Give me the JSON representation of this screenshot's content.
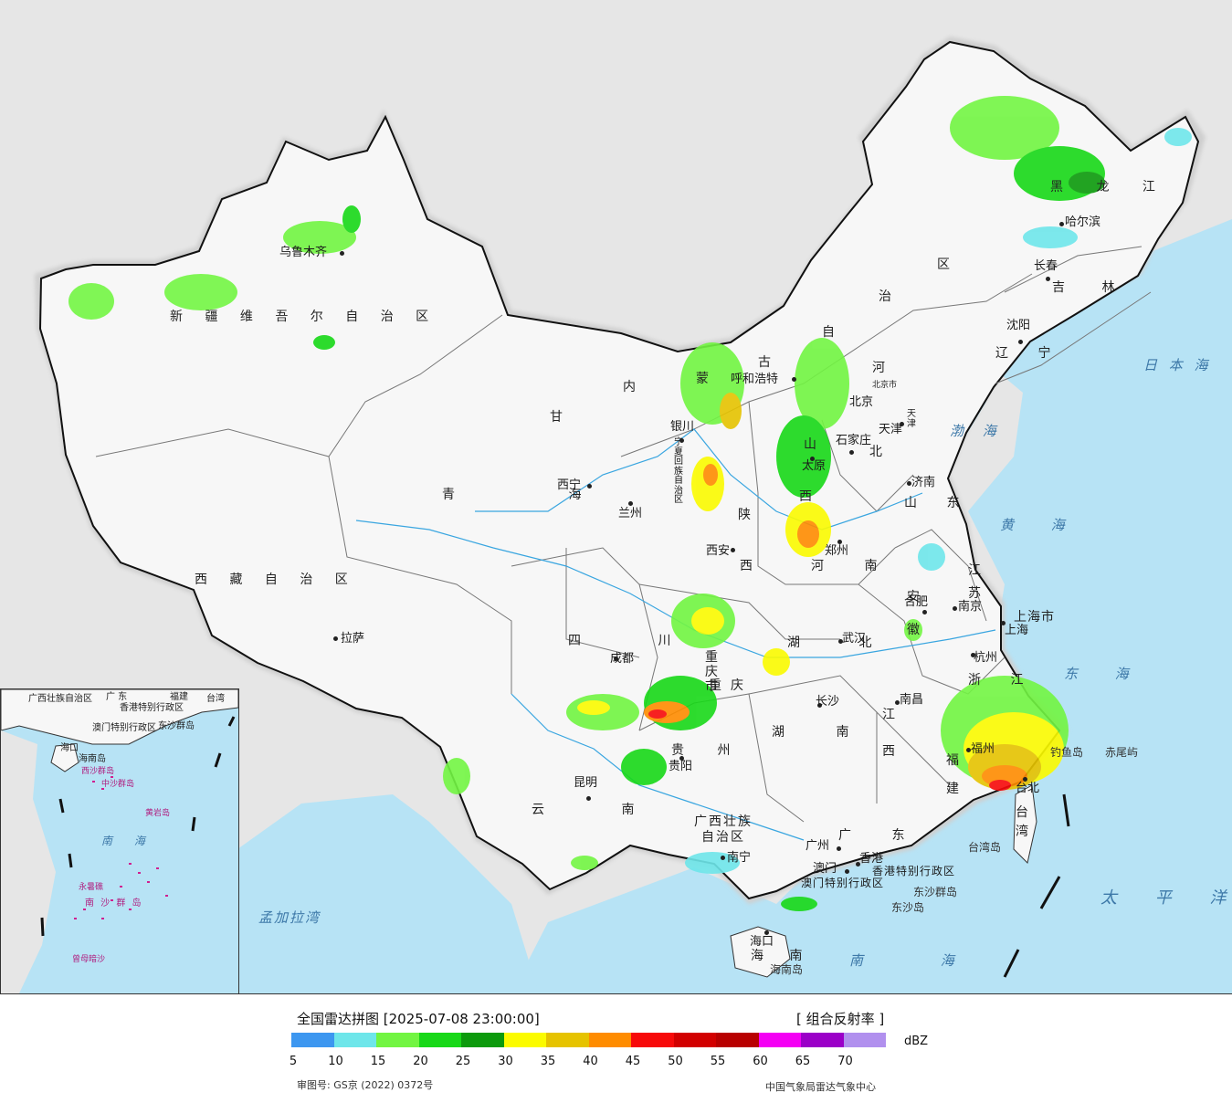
{
  "map": {
    "provinces": [
      "新 疆 维 吾 尔 自 治 区",
      "西 藏 自 治 区",
      "青 海",
      "甘",
      "内",
      "蒙",
      "古",
      "自",
      "治",
      "区",
      "黑 龙 江",
      "吉 林",
      "辽 宁",
      "河",
      "北",
      "山 东",
      "山",
      "西",
      "陕",
      "西",
      "宁夏回族自治区",
      "四 川",
      "重 庆 市",
      "贵 州",
      "云 南",
      "广西壮族",
      "自治区",
      "广 东",
      "湖 南",
      "湖 北",
      "河 南",
      "安 徽",
      "江 苏",
      "浙 江",
      "江",
      "西",
      "福 建",
      "台 湾",
      "海 南",
      "上海市",
      "天 津",
      "北京市",
      "香港特别行政区",
      "澳门特别行政区"
    ],
    "cities": [
      "乌鲁木齐",
      "拉萨",
      "西宁",
      "兰州",
      "银川",
      "呼和浩特",
      "北京",
      "天津",
      "石家庄",
      "太原",
      "济南",
      "郑州",
      "西安",
      "成都",
      "重庆",
      "贵阳",
      "昆明",
      "南宁",
      "广州",
      "香港",
      "澳门",
      "海口",
      "长沙",
      "武汉",
      "南昌",
      "福州",
      "台北",
      "杭州",
      "上海",
      "南京",
      "合肥",
      "沈阳",
      "长春",
      "哈尔滨"
    ],
    "seas": [
      "日 本 海",
      "渤 海",
      "黄 海",
      "东 海",
      "太 平 洋",
      "南 海",
      "孟加拉湾"
    ],
    "islands": [
      "钓鱼岛",
      "赤尾屿",
      "台湾岛",
      "东沙群岛",
      "东沙岛",
      "海南岛"
    ],
    "inset": {
      "labels": [
        "广西壮族自治区",
        "广 东",
        "福建",
        "台湾",
        "香港特别行政区",
        "澳门特别行政区",
        "东沙群岛",
        "海口",
        "海南岛",
        "西沙群岛",
        "中沙群岛",
        "黄岩岛",
        "南 海",
        "永暑礁",
        "南 沙 群 岛",
        "曾母暗沙"
      ]
    }
  },
  "legend": {
    "title": "全国雷达拼图 [2025-07-08 23:00:00]",
    "product": "[ 组合反射率 ]",
    "unit": "dBZ",
    "colors": [
      "#3d97f0",
      "#6ee6ea",
      "#72f542",
      "#18d818",
      "#0c9a0c",
      "#fbfb00",
      "#e6c300",
      "#ff8c00",
      "#f70a0a",
      "#d20000",
      "#b80000",
      "#f400f4",
      "#9b00c8",
      "#b190ee"
    ],
    "ticks": [
      "5",
      "10",
      "15",
      "20",
      "25",
      "30",
      "35",
      "40",
      "45",
      "50",
      "55",
      "60",
      "65",
      "70"
    ],
    "approval": "审图号: GS京 (2022) 0372号",
    "agency": "中国气象局雷达气象中心"
  },
  "legend_label_map_title": ""
}
